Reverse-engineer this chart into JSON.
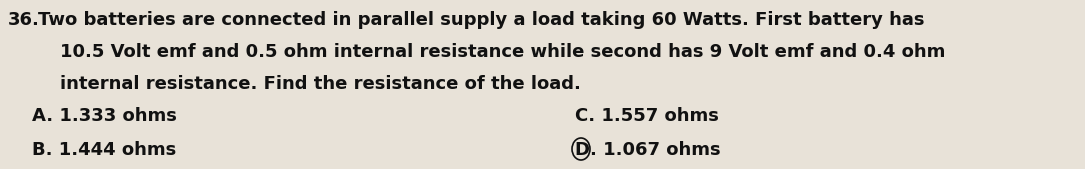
{
  "question_number": "36.",
  "line1": "Two batteries are connected in parallel supply a load taking 60 Watts. First battery has",
  "line2": "10.5 Volt emf and 0.5 ohm internal resistance while second has 9 Volt emf and 0.4 ohm",
  "line3": "internal resistance. Find the resistance of the load.",
  "option_A": "A. 1.333 ohms",
  "option_B": "B. 1.444 ohms",
  "option_C": "C. 1.557 ohms",
  "option_D": "D. 1.067 ohms",
  "bg_color": "#e8e2d8",
  "text_color": "#111111",
  "font_size": 13.0
}
